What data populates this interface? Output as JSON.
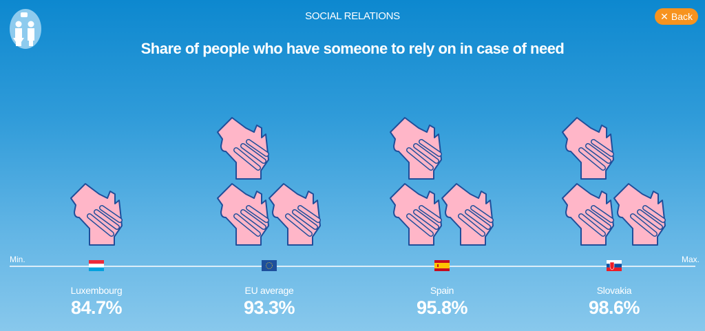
{
  "header": {
    "section": "SOCIAL RELATIONS",
    "back_label": "Back",
    "title": "Share of people who have someone to rely on in case of need"
  },
  "axis": {
    "min_label": "Min.",
    "max_label": "Max."
  },
  "colors": {
    "hand_fill": "#ffb6c8",
    "hand_outline": "#1f4e9a",
    "back_button": "#f7931e"
  },
  "chart_data": {
    "type": "pictogram",
    "title": "Share of people who have someone to rely on in case of need",
    "categories": [
      "Luxembourg",
      "EU average",
      "Spain",
      "Slovakia"
    ],
    "values": [
      84.7,
      93.3,
      95.8,
      98.6
    ],
    "value_labels": [
      "84.7%",
      "93.3%",
      "95.8%",
      "98.6%"
    ],
    "icon_counts": [
      1,
      3,
      3,
      3
    ],
    "icon": "handshake-icon",
    "flags": [
      "luxembourg",
      "eu",
      "spain",
      "slovakia"
    ]
  }
}
